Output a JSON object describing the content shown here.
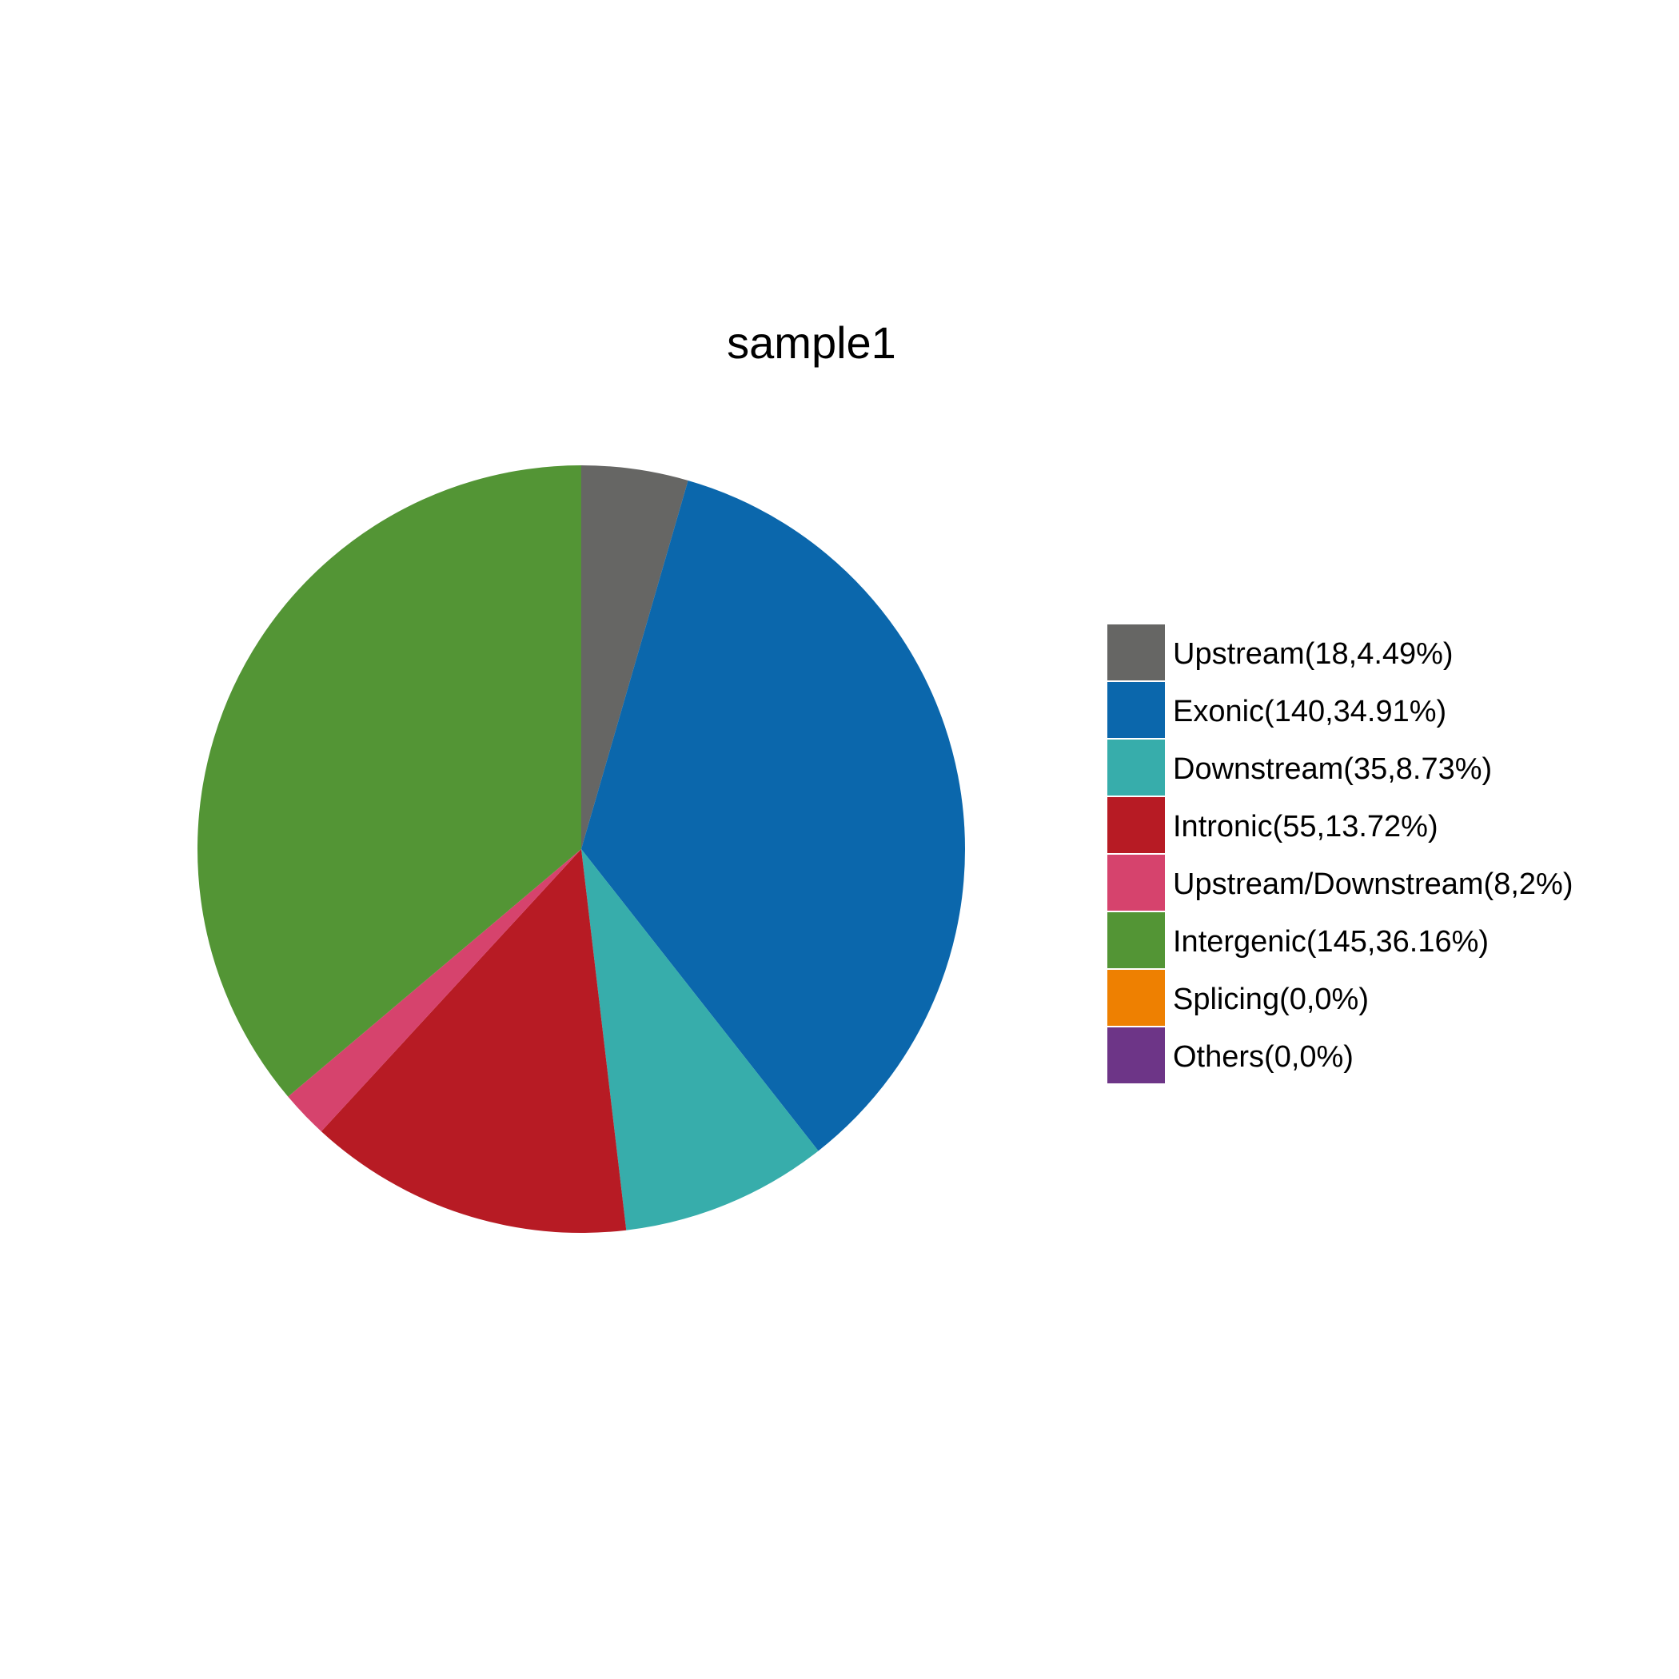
{
  "chart_data": {
    "type": "pie",
    "title": "sample1",
    "start": "12 o'clock",
    "direction": "clockwise",
    "legend_position": "right",
    "slices": [
      {
        "label": "Upstream(18,4.49%)",
        "value": 18,
        "percent": 4.49,
        "color": "#666664"
      },
      {
        "label": "Exonic(140,34.91%)",
        "value": 140,
        "percent": 34.91,
        "color": "#0B67AC"
      },
      {
        "label": "Downstream(35,8.73%)",
        "value": 35,
        "percent": 8.73,
        "color": "#37ADAB"
      },
      {
        "label": "Intronic(55,13.72%)",
        "value": 55,
        "percent": 13.72,
        "color": "#B71B24"
      },
      {
        "label": "Upstream/Downstream(8,2%)",
        "value": 8,
        "percent": 2,
        "color": "#D6436D"
      },
      {
        "label": "Intergenic(145,36.16%)",
        "value": 145,
        "percent": 36.16,
        "color": "#539535"
      },
      {
        "label": "Splicing(0,0%)",
        "value": 0,
        "percent": 0,
        "color": "#EE8001"
      },
      {
        "label": "Others(0,0%)",
        "value": 0,
        "percent": 0,
        "color": "#6D3587"
      }
    ]
  }
}
